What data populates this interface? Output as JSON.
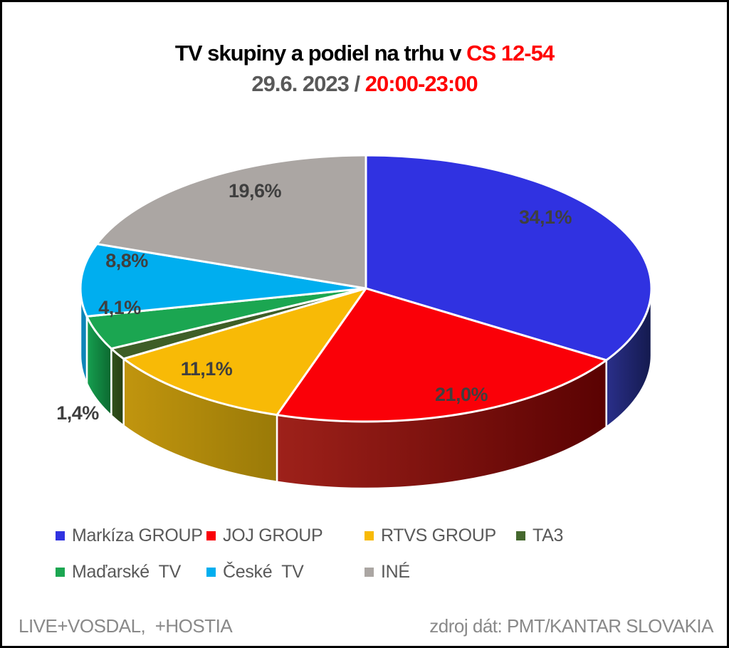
{
  "title": {
    "black": "TV skupiny a podiel na trhu v ",
    "red": "CS 12-54"
  },
  "subtitle": {
    "gray": "29.6. 2023 / ",
    "red": "20:00-23:00"
  },
  "colors": {
    "title_black": "#000000",
    "accent_red": "#ff0000",
    "subtitle_gray": "#595959",
    "slice_label_text": "#3f3f3f",
    "legend_text": "#595959",
    "footer_text": "#898989",
    "background": "#ffffff",
    "frame_border": "#000000",
    "slice_separator": "#ffffff"
  },
  "chart_data": {
    "type": "pie",
    "style": "3d-pie",
    "title": "TV skupiny a podiel na trhu v CS 12-54",
    "subtitle": "29.6. 2023 / 20:00-23:00",
    "unit": "%",
    "start_angle_deg": 0,
    "direction": "clockwise",
    "legend_position": "bottom",
    "slices": [
      {
        "label": "Markíza GROUP",
        "value": 34.1,
        "display": "34,1%",
        "color": "#3032e1",
        "side_from": "#2a2f8a",
        "side_to": "#141a4e"
      },
      {
        "label": "JOJ GROUP",
        "value": 21.0,
        "display": "21,0%",
        "color": "#fa0008",
        "side_from": "#9e211a",
        "side_to": "#5a0202"
      },
      {
        "label": "RTVS GROUP",
        "value": 11.1,
        "display": "11,1%",
        "color": "#f8ba06",
        "side_from": "#c1950e",
        "side_to": "#9a7a08"
      },
      {
        "label": "TA3",
        "value": 1.4,
        "display": "1,4%",
        "color": "#3e5e27",
        "side_from": "#31511c",
        "side_to": "#273f13"
      },
      {
        "label": "Maďarské  TV",
        "value": 4.1,
        "display": "4,1%",
        "color": "#1ba651",
        "side_from": "#16a050",
        "side_to": "#0c6830"
      },
      {
        "label": "České  TV",
        "value": 8.8,
        "display": "8,8%",
        "color": "#00aeef",
        "side_from": "#0e85b8",
        "side_to": "#0e85b8"
      },
      {
        "label": "INÉ",
        "value": 19.6,
        "display": "19,6%",
        "color": "#aba6a3",
        "side_from": "#7d7977",
        "side_to": "#7d7977"
      }
    ]
  },
  "legend": {
    "rows": [
      [
        {
          "label": "Markíza GROUP",
          "color": "#3032e1"
        },
        {
          "label": "JOJ GROUP",
          "color": "#fa0008"
        },
        {
          "label": "RTVS GROUP",
          "color": "#f8ba06"
        },
        {
          "label": "TA3",
          "color": "#45682e"
        }
      ],
      [
        {
          "label": "Maďarské  TV",
          "color": "#1ba651"
        },
        {
          "label": "České  TV",
          "color": "#00aeef"
        },
        {
          "label": "INÉ",
          "color": "#aba6a3"
        }
      ]
    ]
  },
  "footer": {
    "left": "LIVE+VOSDAL,  +HOSTIA",
    "right": "zdroj dát: PMT/KANTAR SLOVAKIA"
  }
}
